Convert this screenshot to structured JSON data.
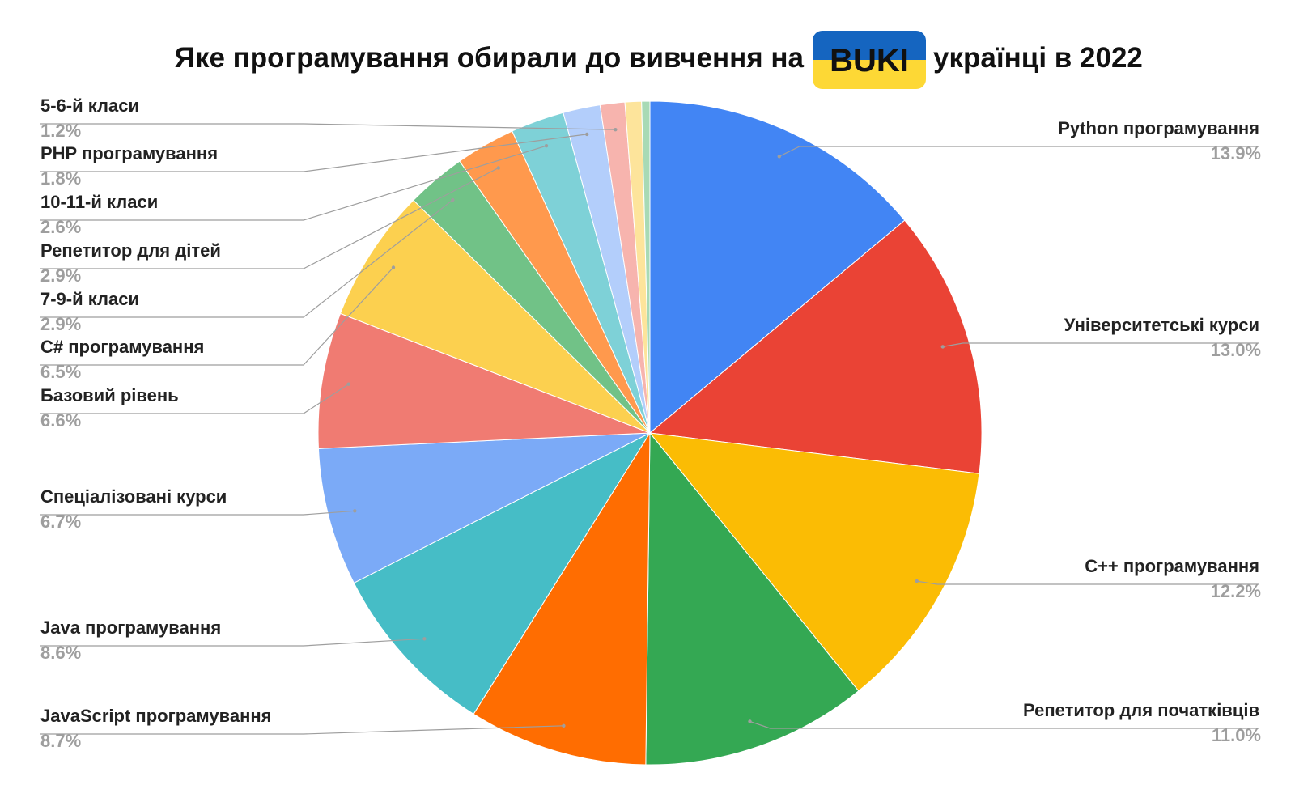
{
  "title": {
    "before": "Яке програмування обирали до вивчення на",
    "logo": "BUKI",
    "after": "українці в 2022"
  },
  "logo_colors": {
    "top": "#1565c0",
    "bottom": "#fdd835"
  },
  "chart_data": {
    "type": "pie",
    "unit": "%",
    "start_angle": "12 o'clock",
    "direction": "clockwise",
    "slices": [
      {
        "label": "Python програмування",
        "value": 13.9,
        "value_label": "13.9%",
        "color": "#4285f4",
        "side": "right"
      },
      {
        "label": "Університетські курси",
        "value": 13.0,
        "value_label": "13.0%",
        "color": "#ea4335",
        "side": "right"
      },
      {
        "label": "C++ програмування",
        "value": 12.2,
        "value_label": "12.2%",
        "color": "#fbbc04",
        "side": "right"
      },
      {
        "label": "Репетитор для початківців",
        "value": 11.0,
        "value_label": "11.0%",
        "color": "#34a853",
        "side": "right"
      },
      {
        "label": "JavaScript програмування",
        "value": 8.7,
        "value_label": "8.7%",
        "color": "#ff6d01",
        "side": "left"
      },
      {
        "label": "Java програмування",
        "value": 8.6,
        "value_label": "8.6%",
        "color": "#46bdc6",
        "side": "left"
      },
      {
        "label": "Спеціалізовані курси",
        "value": 6.7,
        "value_label": "6.7%",
        "color": "#7baaf7",
        "side": "left"
      },
      {
        "label": "Базовий рівень",
        "value": 6.6,
        "value_label": "6.6%",
        "color": "#f07b72",
        "side": "left"
      },
      {
        "label": "C# програмування",
        "value": 6.5,
        "value_label": "6.5%",
        "color": "#fcd04f",
        "side": "left"
      },
      {
        "label": "7-9-й класи",
        "value": 2.9,
        "value_label": "2.9%",
        "color": "#71c287",
        "side": "left"
      },
      {
        "label": "Репетитор для дітей",
        "value": 2.9,
        "value_label": "2.9%",
        "color": "#ff994d",
        "side": "left"
      },
      {
        "label": "10-11-й класи",
        "value": 2.6,
        "value_label": "2.6%",
        "color": "#7ed1d7",
        "side": "left"
      },
      {
        "label": "PHP програмування",
        "value": 1.8,
        "value_label": "1.8%",
        "color": "#b3cefb",
        "side": "left"
      },
      {
        "label": "5-6-й класи",
        "value": 1.2,
        "value_label": "1.2%",
        "color": "#f7b4ae",
        "side": "left"
      },
      {
        "label": "",
        "value": 0.8,
        "value_label": "",
        "color": "#fde49b",
        "side": "none"
      },
      {
        "label": "",
        "value": 0.4,
        "value_label": "",
        "color": "#a8dab5",
        "side": "none"
      }
    ]
  }
}
